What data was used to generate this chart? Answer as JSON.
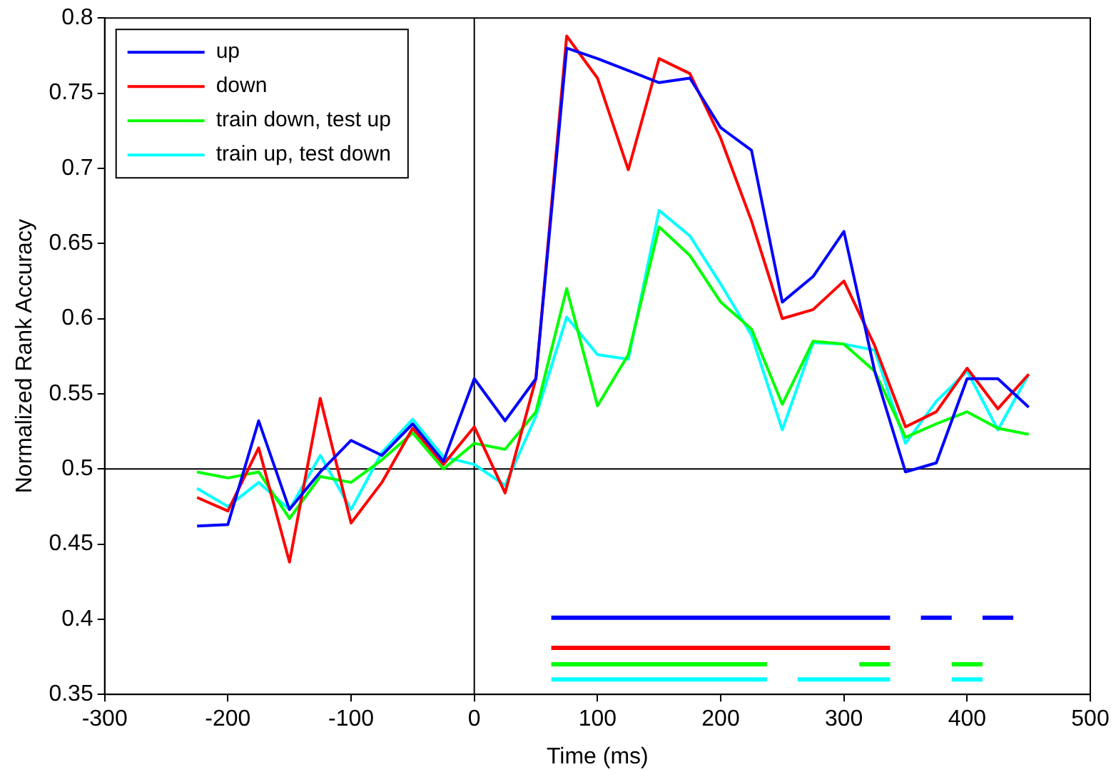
{
  "chart_data": {
    "type": "line",
    "xlabel": "Time (ms)",
    "ylabel": "Normalized Rank Accuracy",
    "x": [
      -225,
      -200,
      -175,
      -150,
      -125,
      -100,
      -75,
      -50,
      -25,
      0,
      25,
      50,
      75,
      100,
      125,
      150,
      175,
      200,
      225,
      250,
      275,
      300,
      325,
      350,
      375,
      400,
      425,
      450
    ],
    "xlim": [
      -300,
      500
    ],
    "xticks": [
      -300,
      -200,
      -100,
      0,
      100,
      200,
      300,
      400,
      500
    ],
    "ylim": [
      0.35,
      0.8
    ],
    "yticks": [
      0.35,
      0.4,
      0.45,
      0.5,
      0.55,
      0.6,
      0.65,
      0.7,
      0.75,
      0.8
    ],
    "legend": "top left",
    "ref_lines": [
      {
        "axis": "x",
        "value": 0,
        "color": "#000000"
      },
      {
        "axis": "y",
        "value": 0.5,
        "color": "#000000"
      }
    ],
    "series": [
      {
        "name": "up",
        "color": "#0000ff",
        "values": [
          0.462,
          0.463,
          0.532,
          0.473,
          0.498,
          0.519,
          0.509,
          0.53,
          0.505,
          0.56,
          0.532,
          0.56,
          0.78,
          0.773,
          0.765,
          0.757,
          0.76,
          0.727,
          0.712,
          0.611,
          0.628,
          0.658,
          0.565,
          0.498,
          0.504,
          0.56,
          0.56,
          0.541
        ]
      },
      {
        "name": "down",
        "color": "#ff0000",
        "values": [
          0.481,
          0.472,
          0.514,
          0.438,
          0.547,
          0.464,
          0.491,
          0.527,
          0.503,
          0.528,
          0.484,
          0.56,
          0.788,
          0.76,
          0.699,
          0.773,
          0.763,
          0.72,
          0.665,
          0.6,
          0.606,
          0.625,
          0.582,
          0.528,
          0.538,
          0.567,
          0.54,
          0.563
        ]
      },
      {
        "name": "train down, test up",
        "color": "#00ff00",
        "values": [
          0.498,
          0.494,
          0.498,
          0.467,
          0.495,
          0.491,
          0.506,
          0.524,
          0.5,
          0.517,
          0.513,
          0.538,
          0.62,
          0.542,
          0.576,
          0.661,
          0.642,
          0.611,
          0.593,
          0.543,
          0.585,
          0.583,
          0.565,
          0.521,
          0.53,
          0.538,
          0.527,
          0.523
        ]
      },
      {
        "name": "train up, test down",
        "color": "#00ffff",
        "values": [
          0.487,
          0.475,
          0.491,
          0.473,
          0.509,
          0.473,
          0.511,
          0.533,
          0.508,
          0.503,
          0.489,
          0.535,
          0.601,
          0.576,
          0.573,
          0.672,
          0.655,
          0.623,
          0.589,
          0.526,
          0.584,
          0.583,
          0.579,
          0.517,
          0.545,
          0.565,
          0.526,
          0.563
        ]
      },
      {
        "color": "#0000ff",
        "x": [
          62.5,
          337.5,
          350,
          362.5,
          387.5,
          400,
          412.5,
          437.5
        ],
        "values": [
          0.401,
          0.401,
          null,
          0.401,
          0.401,
          null,
          0.401,
          0.401
        ]
      },
      {
        "color": "#ff0000",
        "x": [
          62.5,
          337.5
        ],
        "values": [
          0.381,
          0.381
        ]
      },
      {
        "color": "#00ff00",
        "x": [
          62.5,
          237.5,
          275,
          312.5,
          337.5,
          362.5,
          387.5,
          412.5
        ],
        "values": [
          0.37,
          0.37,
          null,
          0.37,
          0.37,
          null,
          0.37,
          0.37
        ]
      },
      {
        "color": "#00ffff",
        "x": [
          62.5,
          237.5,
          250,
          262.5,
          337.5,
          362.5,
          387.5,
          412.5
        ],
        "values": [
          0.36,
          0.36,
          null,
          0.36,
          0.36,
          null,
          0.36,
          0.36
        ]
      }
    ]
  }
}
